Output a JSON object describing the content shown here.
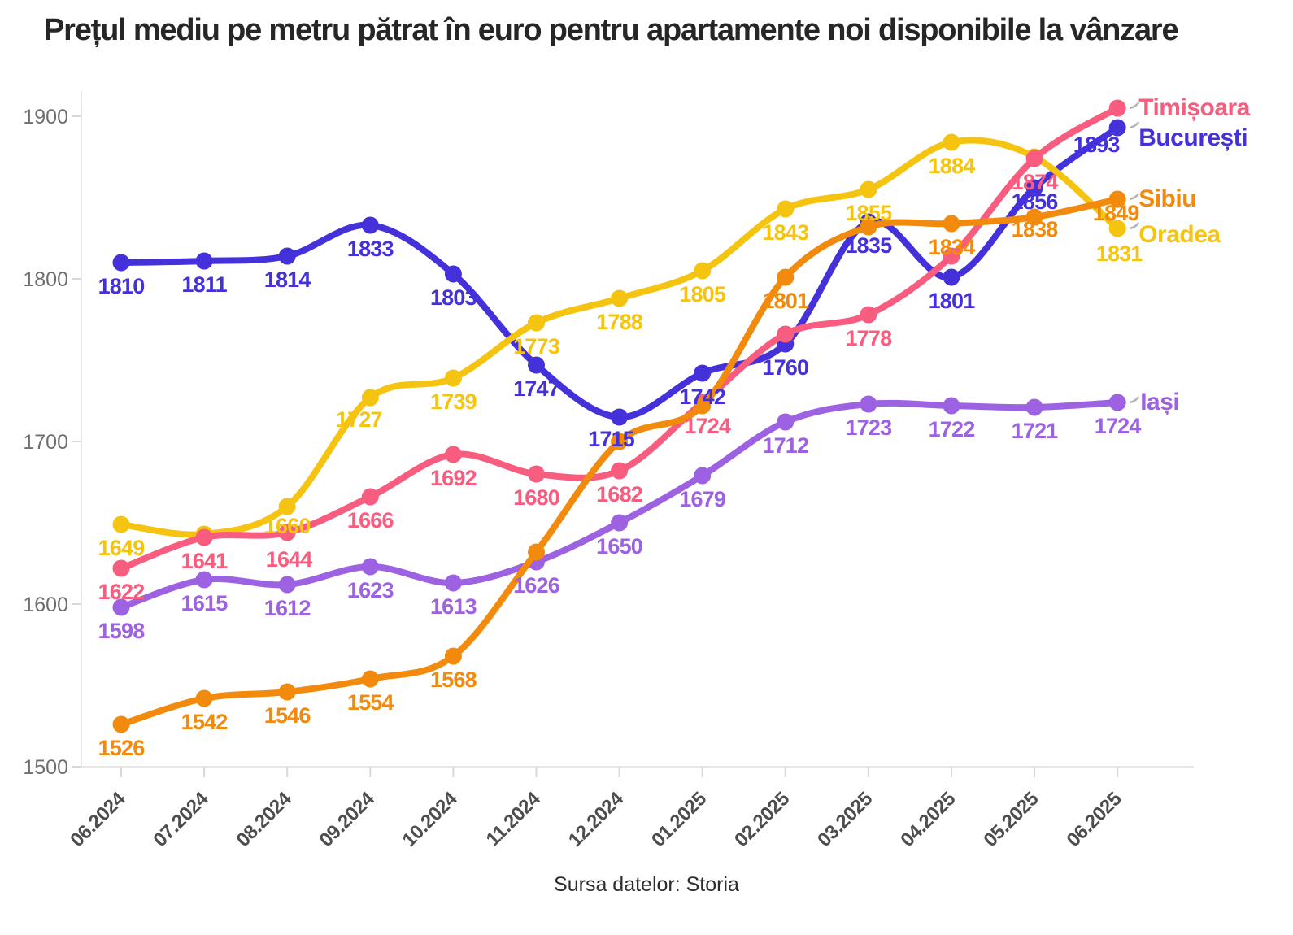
{
  "chart_data": {
    "type": "line",
    "title": "Prețul mediu pe metru pătrat în euro pentru apartamente noi disponibile la vânzare",
    "caption": "Sursa datelor: Storia",
    "categories": [
      "06.2024",
      "07.2024",
      "08.2024",
      "09.2024",
      "10.2024",
      "11.2024",
      "12.2024",
      "01.2025",
      "02.2025",
      "03.2025",
      "04.2025",
      "05.2025",
      "06.2025"
    ],
    "y_ticks": [
      1900,
      1800,
      1700,
      1600,
      1500
    ],
    "ylim": [
      1500,
      1920
    ],
    "grid": "none",
    "legend_position": "right-end-labels",
    "series": [
      {
        "name": "București",
        "color": "#4531d9",
        "values": [
          1810,
          1811,
          1814,
          1833,
          1803,
          1747,
          1715,
          1742,
          1760,
          1835,
          1801,
          1856,
          1893
        ],
        "label_visible": [
          true,
          true,
          true,
          true,
          true,
          true,
          true,
          true,
          true,
          true,
          true,
          true,
          true
        ]
      },
      {
        "name": "Oradea",
        "color": "#f5c411",
        "values": [
          1649,
          1643,
          1660,
          1727,
          1739,
          1773,
          1788,
          1805,
          1843,
          1855,
          1884,
          1875,
          1831
        ],
        "label_visible": [
          true,
          false,
          true,
          true,
          true,
          true,
          true,
          true,
          true,
          true,
          true,
          false,
          true
        ]
      },
      {
        "name": "Timișoara",
        "color": "#f85c7f",
        "values": [
          1622,
          1641,
          1644,
          1666,
          1692,
          1680,
          1682,
          1724,
          1766,
          1778,
          1814,
          1874,
          1905
        ],
        "label_visible": [
          true,
          true,
          true,
          true,
          true,
          true,
          true,
          true,
          false,
          true,
          false,
          true,
          false
        ]
      },
      {
        "name": "Iași",
        "color": "#9c62e2",
        "values": [
          1598,
          1615,
          1612,
          1623,
          1613,
          1626,
          1650,
          1679,
          1712,
          1723,
          1722,
          1721,
          1724
        ],
        "label_visible": [
          true,
          true,
          true,
          true,
          true,
          true,
          true,
          true,
          true,
          true,
          true,
          true,
          true
        ]
      },
      {
        "name": "Sibiu",
        "color": "#f28b0d",
        "values": [
          1526,
          1542,
          1546,
          1554,
          1568,
          1632,
          1700,
          1722,
          1801,
          1832,
          1834,
          1838,
          1849
        ],
        "label_visible": [
          true,
          true,
          true,
          true,
          true,
          false,
          false,
          false,
          true,
          false,
          true,
          true,
          true
        ]
      }
    ]
  }
}
